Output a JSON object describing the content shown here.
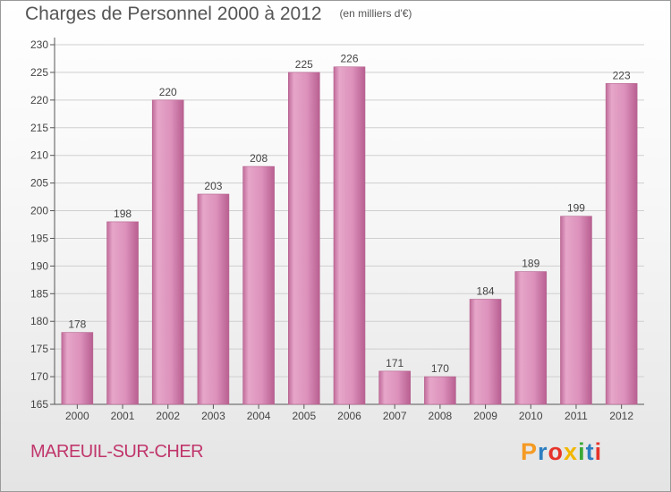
{
  "chart_data": {
    "type": "bar",
    "title": "Charges de Personnel 2000 à 2012",
    "subtitle": "(en milliers d'€)",
    "categories": [
      "2000",
      "2001",
      "2002",
      "2003",
      "2004",
      "2005",
      "2006",
      "2007",
      "2008",
      "2009",
      "2010",
      "2011",
      "2012"
    ],
    "values": [
      178,
      198,
      220,
      203,
      208,
      225,
      226,
      171,
      170,
      184,
      189,
      199,
      223
    ],
    "ylim": [
      165,
      230
    ],
    "yticks": [
      "165",
      "170",
      "175",
      "180",
      "185",
      "190",
      "195",
      "200",
      "205",
      "210",
      "215",
      "220",
      "225",
      "230"
    ],
    "grid": true,
    "bar_color": "#d98ab5"
  },
  "commune": "MAREUIL-SUR-CHER",
  "logo": {
    "letters": [
      "P",
      "r",
      "o",
      "x",
      "i",
      "t",
      "i"
    ],
    "colors": [
      "#f59a23",
      "#2d7fc1",
      "#e6332a",
      "#f2b700",
      "#3aa935",
      "#2d7fc1",
      "#e6332a"
    ]
  }
}
